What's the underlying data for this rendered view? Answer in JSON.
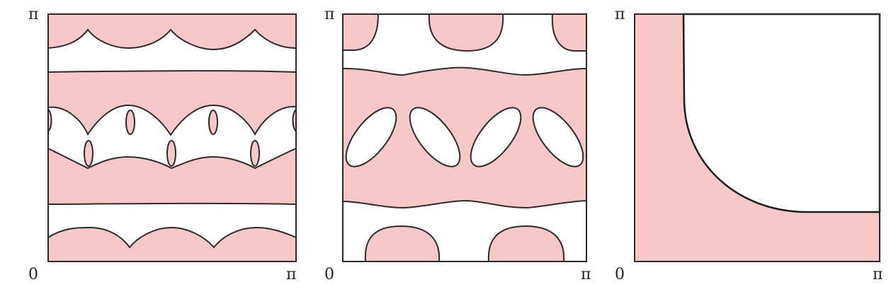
{
  "colors": {
    "fill": "#f8c8c8",
    "stroke": "#2b2b2b",
    "background": "#ffffff"
  },
  "panels": [
    {
      "y_top_label": "π",
      "origin_label": "0",
      "x_right_label": "π"
    },
    {
      "y_top_label": "π",
      "origin_label": "0",
      "x_right_label": "π"
    },
    {
      "y_top_label": "π",
      "origin_label": "0",
      "x_right_label": "π"
    }
  ]
}
